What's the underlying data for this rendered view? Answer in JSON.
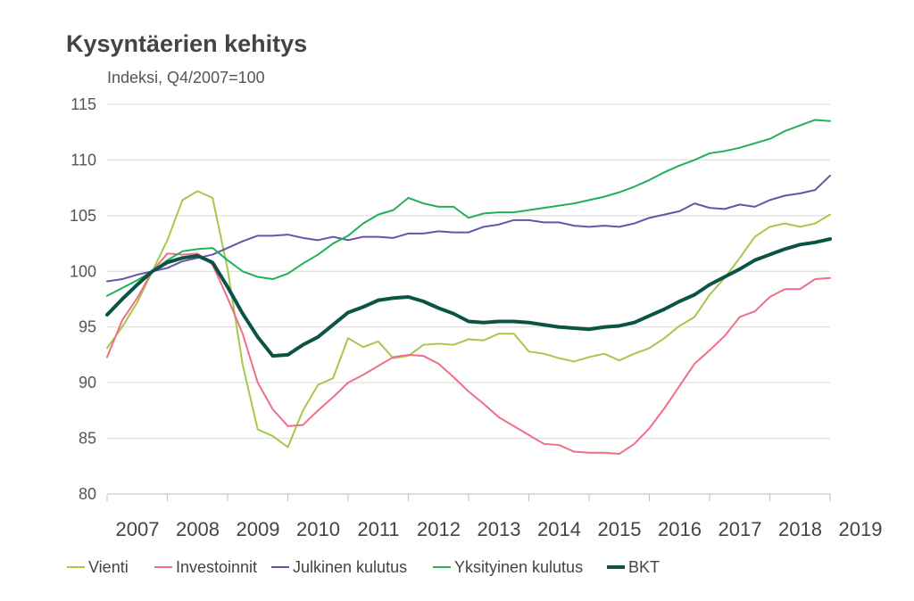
{
  "chart_data": {
    "type": "line",
    "title": "Kysyntäerien kehitys",
    "subtitle": "Indeksi, Q4/2007=100",
    "ylim": [
      80,
      115
    ],
    "yticks": [
      80,
      85,
      90,
      95,
      100,
      105,
      110,
      115
    ],
    "xlim": [
      2007,
      2019
    ],
    "xticks": [
      "2007",
      "2008",
      "2009",
      "2010",
      "2011",
      "2012",
      "2013",
      "2014",
      "2015",
      "2016",
      "2017",
      "2018",
      "2019"
    ],
    "x_quarterly": [
      "Q1/2007",
      "Q2/2007",
      "Q3/2007",
      "Q4/2007",
      "Q1/2008",
      "Q2/2008",
      "Q3/2008",
      "Q4/2008",
      "Q1/2009",
      "Q2/2009",
      "Q3/2009",
      "Q4/2009",
      "Q1/2010",
      "Q2/2010",
      "Q3/2010",
      "Q4/2010",
      "Q1/2011",
      "Q2/2011",
      "Q3/2011",
      "Q4/2011",
      "Q1/2012",
      "Q2/2012",
      "Q3/2012",
      "Q4/2012",
      "Q1/2013",
      "Q2/2013",
      "Q3/2013",
      "Q4/2013",
      "Q1/2014",
      "Q2/2014",
      "Q3/2014",
      "Q4/2014",
      "Q1/2015",
      "Q2/2015",
      "Q3/2015",
      "Q4/2015",
      "Q1/2016",
      "Q2/2016",
      "Q3/2016",
      "Q4/2016",
      "Q1/2017",
      "Q2/2017",
      "Q3/2017",
      "Q4/2017",
      "Q1/2018",
      "Q2/2018",
      "Q3/2018",
      "Q4/2018",
      "Q1/2019"
    ],
    "grid": true,
    "legend_position": "bottom",
    "series": [
      {
        "name": "Vienti",
        "color": "#a3c94a",
        "width": 2,
        "values": [
          93.1,
          95.0,
          97.2,
          100.0,
          102.8,
          106.4,
          107.2,
          106.6,
          100.2,
          91.6,
          85.8,
          85.2,
          84.2,
          87.5,
          89.8,
          90.4,
          94.0,
          93.2,
          93.7,
          92.2,
          92.4,
          93.4,
          93.5,
          93.4,
          93.9,
          93.8,
          94.4,
          94.4,
          92.8,
          92.6,
          92.2,
          91.9,
          92.3,
          92.6,
          92.0,
          92.6,
          93.1,
          94.0,
          95.1,
          95.9,
          97.9,
          99.4,
          101.2,
          103.1,
          104.0,
          104.3,
          104.0,
          104.3,
          105.1
        ]
      },
      {
        "name": "Investoinnit",
        "color": "#f06e86",
        "width": 2,
        "values": [
          92.3,
          95.6,
          97.6,
          100.0,
          101.6,
          101.5,
          101.6,
          100.6,
          97.6,
          94.4,
          90.0,
          87.6,
          86.1,
          86.2,
          87.5,
          88.7,
          90.0,
          90.7,
          91.5,
          92.3,
          92.5,
          92.4,
          91.7,
          90.5,
          89.2,
          88.1,
          86.9,
          86.1,
          85.3,
          84.5,
          84.4,
          83.8,
          83.7,
          83.7,
          83.6,
          84.5,
          85.9,
          87.7,
          89.7,
          91.7,
          92.9,
          94.2,
          95.9,
          96.4,
          97.7,
          98.4,
          98.4,
          99.3,
          99.4
        ]
      },
      {
        "name": "Julkinen kulutus",
        "color": "#6a52a8",
        "width": 2,
        "values": [
          99.1,
          99.3,
          99.7,
          100.0,
          100.3,
          100.9,
          101.2,
          101.5,
          102.1,
          102.7,
          103.2,
          103.2,
          103.3,
          103.0,
          102.8,
          103.1,
          102.8,
          103.1,
          103.1,
          103.0,
          103.4,
          103.4,
          103.6,
          103.5,
          103.5,
          104.0,
          104.2,
          104.6,
          104.6,
          104.4,
          104.4,
          104.1,
          104.0,
          104.1,
          104.0,
          104.3,
          104.8,
          105.1,
          105.4,
          106.1,
          105.7,
          105.6,
          106.0,
          105.8,
          106.4,
          106.8,
          107.0,
          107.3,
          108.6
        ]
      },
      {
        "name": "Yksityinen kulutus",
        "color": "#1fb05a",
        "width": 2,
        "values": [
          97.8,
          98.5,
          99.2,
          100.0,
          101.0,
          101.8,
          102.0,
          102.1,
          101.0,
          100.0,
          99.5,
          99.3,
          99.8,
          100.7,
          101.5,
          102.5,
          103.2,
          104.3,
          105.1,
          105.5,
          106.6,
          106.1,
          105.8,
          105.8,
          104.8,
          105.2,
          105.3,
          105.3,
          105.5,
          105.7,
          105.9,
          106.1,
          106.4,
          106.7,
          107.1,
          107.6,
          108.2,
          108.9,
          109.5,
          110.0,
          110.6,
          110.8,
          111.1,
          111.5,
          111.9,
          112.6,
          113.1,
          113.6,
          113.5
        ]
      },
      {
        "name": "BKT",
        "color": "#0b5345",
        "width": 4,
        "values": [
          96.1,
          97.5,
          98.8,
          100.0,
          100.8,
          101.2,
          101.4,
          100.8,
          98.6,
          96.2,
          94.1,
          92.4,
          92.5,
          93.4,
          94.1,
          95.2,
          96.3,
          96.8,
          97.4,
          97.6,
          97.7,
          97.3,
          96.7,
          96.2,
          95.5,
          95.4,
          95.5,
          95.5,
          95.4,
          95.2,
          95.0,
          94.9,
          94.8,
          95.0,
          95.1,
          95.4,
          96.0,
          96.6,
          97.3,
          97.9,
          98.8,
          99.5,
          100.2,
          101.0,
          101.5,
          102.0,
          102.4,
          102.6,
          102.9
        ]
      }
    ]
  }
}
